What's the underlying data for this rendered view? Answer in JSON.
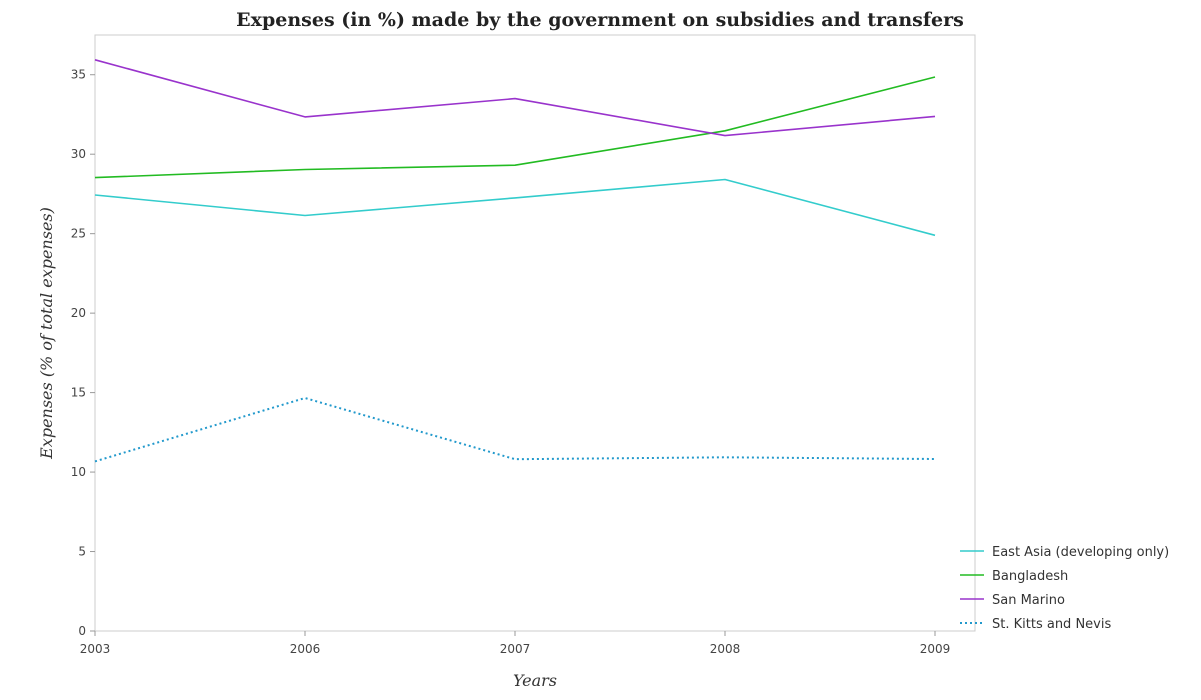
{
  "chart_data": {
    "type": "line",
    "title": "Expenses (in %) made by the government on subsidies and transfers",
    "xlabel": "Years",
    "ylabel": "Expenses (% of total expenses)",
    "categories": [
      "2003",
      "2006",
      "2007",
      "2008",
      "2009"
    ],
    "ylim": [
      0,
      37.5
    ],
    "yticks": [
      0,
      5,
      10,
      15,
      20,
      25,
      30,
      35
    ],
    "grid": false,
    "legend_position": "bottom-right",
    "series": [
      {
        "name": "East Asia (developing only)",
        "color": "#33cccc",
        "dash": "solid",
        "values": [
          27.43,
          26.14,
          27.25,
          28.41,
          24.9
        ]
      },
      {
        "name": "Bangladesh",
        "color": "#22bb22",
        "dash": "solid",
        "values": [
          28.53,
          29.04,
          29.31,
          31.47,
          34.86
        ]
      },
      {
        "name": "San Marino",
        "color": "#9933cc",
        "dash": "solid",
        "values": [
          35.94,
          32.35,
          33.5,
          31.17,
          32.38
        ]
      },
      {
        "name": "St. Kitts and Nevis",
        "color": "#2299cc",
        "dash": "dotted",
        "values": [
          10.67,
          14.66,
          10.81,
          10.93,
          10.82
        ]
      }
    ]
  }
}
